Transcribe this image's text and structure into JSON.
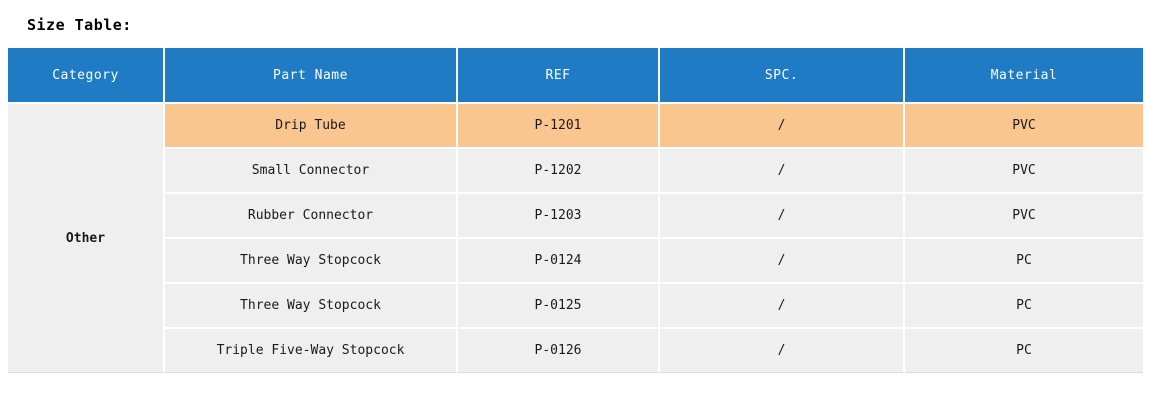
{
  "title": "Size Table:",
  "table": {
    "headers": [
      "Category",
      "Part Name",
      "REF",
      "SPC.",
      "Material"
    ],
    "category_label": "Other",
    "rows": [
      {
        "part_name": "Drip Tube",
        "ref": "P-1201",
        "spc": "/",
        "material": "PVC",
        "highlighted": true
      },
      {
        "part_name": "Small Connector",
        "ref": "P-1202",
        "spc": "/",
        "material": "PVC",
        "highlighted": false
      },
      {
        "part_name": "Rubber Connector",
        "ref": "P-1203",
        "spc": "/",
        "material": "PVC",
        "highlighted": false
      },
      {
        "part_name": "Three Way Stopcock",
        "ref": "P-0124",
        "spc": "/",
        "material": "PC",
        "highlighted": false
      },
      {
        "part_name": "Three Way Stopcock",
        "ref": "P-0125",
        "spc": "/",
        "material": "PC",
        "highlighted": false
      },
      {
        "part_name": "Triple Five-Way Stopcock",
        "ref": "P-0126",
        "spc": "/",
        "material": "PC",
        "highlighted": false
      }
    ],
    "colors": {
      "header_bg": "#1E7BC4",
      "header_text": "#FFFFFF",
      "row_bg": "#EFEFEF",
      "highlight_bg": "#FAC690",
      "cell_text": "#1A1A1A"
    }
  }
}
